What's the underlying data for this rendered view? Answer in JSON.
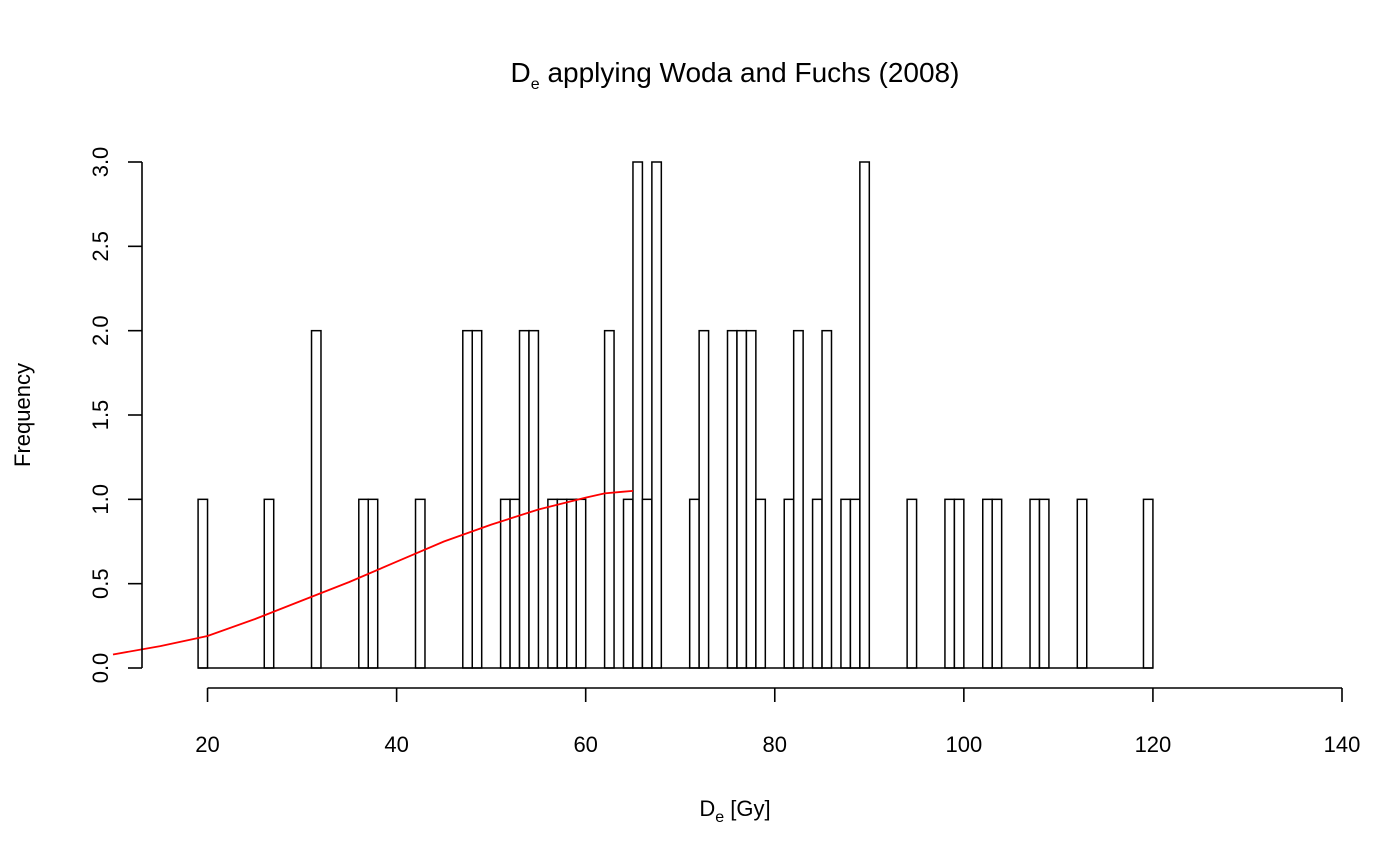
{
  "chart_data": {
    "type": "bar",
    "title": {
      "main": "D",
      "sub": "e",
      "rest": " applying Woda and Fuchs (2008)"
    },
    "xlabel": {
      "main": "D",
      "sub": "e",
      "rest": " [Gy]"
    },
    "ylabel": "Frequency",
    "xlim": [
      10,
      140
    ],
    "ylim": [
      0,
      3
    ],
    "x_ticks": [
      20,
      40,
      60,
      80,
      100,
      120,
      140
    ],
    "y_ticks": [
      0.0,
      0.5,
      1.0,
      1.5,
      2.0,
      2.5,
      3.0
    ],
    "x_tick_labels": [
      "20",
      "40",
      "60",
      "80",
      "100",
      "120",
      "140"
    ],
    "y_tick_labels": [
      "0.0",
      "0.5",
      "1.0",
      "1.5",
      "2.0",
      "2.5",
      "3.0"
    ],
    "bin_start": 19,
    "bin_width": 1,
    "counts": [
      1,
      0,
      0,
      0,
      0,
      0,
      0,
      1,
      0,
      0,
      0,
      0,
      2,
      0,
      0,
      0,
      0,
      1,
      1,
      0,
      0,
      0,
      0,
      1,
      0,
      0,
      0,
      0,
      2,
      2,
      0,
      0,
      1,
      1,
      2,
      2,
      0,
      1,
      1,
      1,
      1,
      0,
      0,
      2,
      0,
      1,
      3,
      1,
      3,
      0,
      0,
      0,
      1,
      2,
      0,
      0,
      2,
      2,
      2,
      1,
      0,
      0,
      1,
      2,
      0,
      1,
      2,
      0,
      1,
      1,
      3,
      0,
      0,
      0,
      0,
      1,
      0,
      0,
      0,
      1,
      1,
      0,
      0,
      1,
      1,
      0,
      0,
      0,
      1,
      1,
      0,
      0,
      0,
      1,
      0,
      0,
      0,
      0,
      0,
      0,
      1
    ],
    "series": [
      {
        "name": "",
        "type": "line",
        "color": "#ff0000",
        "x": [
          10,
          15,
          20,
          25,
          30,
          35,
          40,
          45,
          50,
          55,
          60,
          62,
          64,
          65
        ],
        "y": [
          0.08,
          0.13,
          0.19,
          0.29,
          0.4,
          0.51,
          0.63,
          0.75,
          0.85,
          0.94,
          1.01,
          1.035,
          1.045,
          1.05
        ]
      }
    ],
    "bar_fill": "#ffffff",
    "bar_stroke": "#000000",
    "grid": false,
    "legend": "none"
  }
}
